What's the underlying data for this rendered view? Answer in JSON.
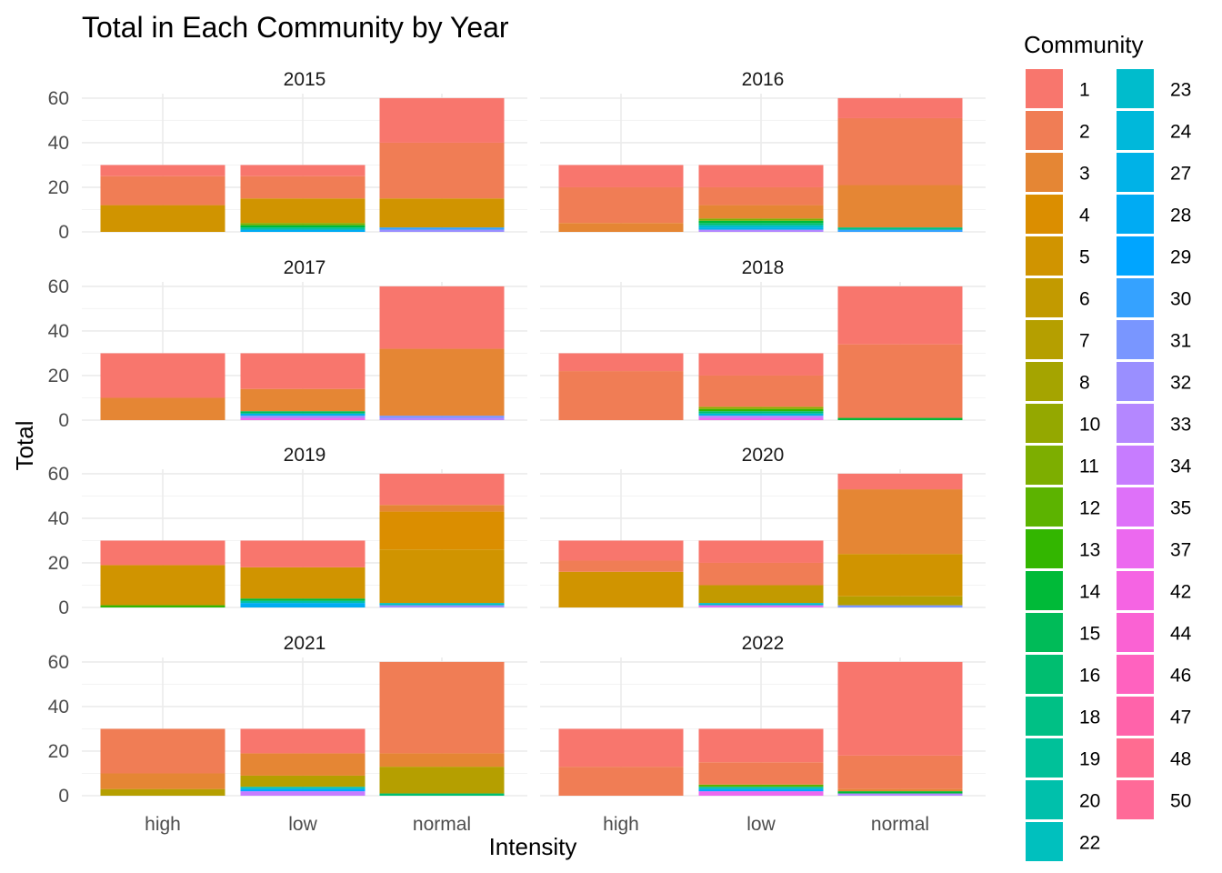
{
  "chart_data": {
    "type": "bar",
    "stacked": true,
    "title": "Total in Each Community by Year",
    "xlabel": "Intensity",
    "ylabel": "Total",
    "ylim": [
      0,
      62
    ],
    "yticks": [
      0,
      20,
      40,
      60
    ],
    "grid": true,
    "legend_position": "right",
    "legend": {
      "title": "Community",
      "entries": [
        "1",
        "2",
        "3",
        "4",
        "5",
        "6",
        "7",
        "8",
        "10",
        "11",
        "12",
        "13",
        "14",
        "15",
        "16",
        "18",
        "19",
        "20",
        "22",
        "23",
        "24",
        "27",
        "28",
        "29",
        "30",
        "31",
        "32",
        "33",
        "34",
        "35",
        "37",
        "42",
        "44",
        "46",
        "47",
        "48",
        "50"
      ],
      "colors": [
        "#F8766D",
        "#F07D55",
        "#E58634",
        "#DB8E00",
        "#D09400",
        "#C29A00",
        "#B59F00",
        "#A5A400",
        "#94A800",
        "#7DAE00",
        "#5CB300",
        "#33B600",
        "#00BA38",
        "#00BB58",
        "#00BE70",
        "#00C085",
        "#00C199",
        "#00C0AB",
        "#00C0BE",
        "#00BCCC",
        "#00B8DA",
        "#00B2E7",
        "#00ABF3",
        "#00A5FF",
        "#35A2FF",
        "#7996FF",
        "#9A8FFF",
        "#B487FF",
        "#C77CFF",
        "#DE71F9",
        "#EC69EF",
        "#F564E3",
        "#FA62D3",
        "#FF62BF",
        "#FF63AA",
        "#FF6C91",
        "#FF6A98"
      ]
    },
    "facets": [
      {
        "year": "2015",
        "bars": [
          {
            "category": "high",
            "segments": [
              {
                "community": "5",
                "value": 12
              },
              {
                "community": "2",
                "value": 13
              },
              {
                "community": "1",
                "value": 5
              }
            ]
          },
          {
            "category": "low",
            "segments": [
              {
                "community": "28",
                "value": 1
              },
              {
                "community": "19",
                "value": 1
              },
              {
                "community": "14",
                "value": 1
              },
              {
                "community": "11",
                "value": 1
              },
              {
                "community": "5",
                "value": 11
              },
              {
                "community": "2",
                "value": 10
              },
              {
                "community": "1",
                "value": 5
              }
            ]
          },
          {
            "category": "normal",
            "segments": [
              {
                "community": "32",
                "value": 1
              },
              {
                "community": "30",
                "value": 1
              },
              {
                "community": "5",
                "value": 13
              },
              {
                "community": "2",
                "value": 25
              },
              {
                "community": "1",
                "value": 20
              }
            ]
          }
        ]
      },
      {
        "year": "2016",
        "bars": [
          {
            "category": "high",
            "segments": [
              {
                "community": "3",
                "value": 4
              },
              {
                "community": "2",
                "value": 16
              },
              {
                "community": "1",
                "value": 10
              }
            ]
          },
          {
            "category": "low",
            "segments": [
              {
                "community": "33",
                "value": 1
              },
              {
                "community": "27",
                "value": 1
              },
              {
                "community": "23",
                "value": 1
              },
              {
                "community": "16",
                "value": 1
              },
              {
                "community": "14",
                "value": 1
              },
              {
                "community": "11",
                "value": 1
              },
              {
                "community": "3",
                "value": 6
              },
              {
                "community": "2",
                "value": 8
              },
              {
                "community": "1",
                "value": 10
              }
            ]
          },
          {
            "category": "normal",
            "segments": [
              {
                "community": "30",
                "value": 1
              },
              {
                "community": "18",
                "value": 1
              },
              {
                "community": "3",
                "value": 19
              },
              {
                "community": "2",
                "value": 30
              },
              {
                "community": "1",
                "value": 9
              }
            ]
          }
        ]
      },
      {
        "year": "2017",
        "bars": [
          {
            "category": "high",
            "segments": [
              {
                "community": "3",
                "value": 10
              },
              {
                "community": "1",
                "value": 20
              }
            ]
          },
          {
            "category": "low",
            "segments": [
              {
                "community": "37",
                "value": 1
              },
              {
                "community": "32",
                "value": 1
              },
              {
                "community": "27",
                "value": 1
              },
              {
                "community": "15",
                "value": 1
              },
              {
                "community": "3",
                "value": 10
              },
              {
                "community": "1",
                "value": 16
              }
            ]
          },
          {
            "category": "normal",
            "segments": [
              {
                "community": "33",
                "value": 1
              },
              {
                "community": "31",
                "value": 1
              },
              {
                "community": "3",
                "value": 30
              },
              {
                "community": "1",
                "value": 28
              }
            ]
          }
        ]
      },
      {
        "year": "2018",
        "bars": [
          {
            "category": "high",
            "segments": [
              {
                "community": "2",
                "value": 22
              },
              {
                "community": "1",
                "value": 8
              }
            ]
          },
          {
            "category": "low",
            "segments": [
              {
                "community": "37",
                "value": 1
              },
              {
                "community": "33",
                "value": 1
              },
              {
                "community": "24",
                "value": 1
              },
              {
                "community": "16",
                "value": 1
              },
              {
                "community": "13",
                "value": 1
              },
              {
                "community": "10",
                "value": 1
              },
              {
                "community": "2",
                "value": 14
              },
              {
                "community": "1",
                "value": 10
              }
            ]
          },
          {
            "category": "normal",
            "segments": [
              {
                "community": "14",
                "value": 1
              },
              {
                "community": "2",
                "value": 33
              },
              {
                "community": "1",
                "value": 26
              }
            ]
          }
        ]
      },
      {
        "year": "2019",
        "bars": [
          {
            "category": "high",
            "segments": [
              {
                "community": "13",
                "value": 1
              },
              {
                "community": "5",
                "value": 18
              },
              {
                "community": "1",
                "value": 11
              }
            ]
          },
          {
            "category": "low",
            "segments": [
              {
                "community": "28",
                "value": 2
              },
              {
                "community": "20",
                "value": 1
              },
              {
                "community": "14",
                "value": 1
              },
              {
                "community": "5",
                "value": 14
              },
              {
                "community": "1",
                "value": 12
              }
            ]
          },
          {
            "category": "normal",
            "segments": [
              {
                "community": "32",
                "value": 1
              },
              {
                "community": "22",
                "value": 1
              },
              {
                "community": "5",
                "value": 24
              },
              {
                "community": "4",
                "value": 17
              },
              {
                "community": "3",
                "value": 3
              },
              {
                "community": "1",
                "value": 14
              }
            ]
          }
        ]
      },
      {
        "year": "2020",
        "bars": [
          {
            "category": "high",
            "segments": [
              {
                "community": "5",
                "value": 16
              },
              {
                "community": "2",
                "value": 5
              },
              {
                "community": "1",
                "value": 9
              }
            ]
          },
          {
            "category": "low",
            "segments": [
              {
                "community": "35",
                "value": 1
              },
              {
                "community": "23",
                "value": 1
              },
              {
                "community": "6",
                "value": 8
              },
              {
                "community": "2",
                "value": 10
              },
              {
                "community": "1",
                "value": 10
              }
            ]
          },
          {
            "category": "normal",
            "segments": [
              {
                "community": "31",
                "value": 1
              },
              {
                "community": "7",
                "value": 4
              },
              {
                "community": "5",
                "value": 19
              },
              {
                "community": "3",
                "value": 29
              },
              {
                "community": "1",
                "value": 7
              }
            ]
          }
        ]
      },
      {
        "year": "2021",
        "bars": [
          {
            "category": "high",
            "segments": [
              {
                "community": "7",
                "value": 3
              },
              {
                "community": "3",
                "value": 7
              },
              {
                "community": "2",
                "value": 20
              }
            ]
          },
          {
            "category": "low",
            "segments": [
              {
                "community": "34",
                "value": 2
              },
              {
                "community": "29",
                "value": 1
              },
              {
                "community": "22",
                "value": 1
              },
              {
                "community": "7",
                "value": 5
              },
              {
                "community": "3",
                "value": 10
              },
              {
                "community": "1",
                "value": 11
              }
            ]
          },
          {
            "category": "normal",
            "segments": [
              {
                "community": "16",
                "value": 1
              },
              {
                "community": "7",
                "value": 12
              },
              {
                "community": "3",
                "value": 6
              },
              {
                "community": "2",
                "value": 41
              }
            ]
          }
        ]
      },
      {
        "year": "2022",
        "bars": [
          {
            "category": "high",
            "segments": [
              {
                "community": "2",
                "value": 13
              },
              {
                "community": "1",
                "value": 17
              }
            ]
          },
          {
            "category": "low",
            "segments": [
              {
                "community": "37",
                "value": 2
              },
              {
                "community": "29",
                "value": 1
              },
              {
                "community": "20",
                "value": 1
              },
              {
                "community": "12",
                "value": 1
              },
              {
                "community": "2",
                "value": 10
              },
              {
                "community": "1",
                "value": 15
              }
            ]
          },
          {
            "category": "normal",
            "segments": [
              {
                "community": "33",
                "value": 1
              },
              {
                "community": "14",
                "value": 1
              },
              {
                "community": "3",
                "value": 1
              },
              {
                "community": "2",
                "value": 15
              },
              {
                "community": "1",
                "value": 42
              }
            ]
          }
        ]
      }
    ]
  }
}
